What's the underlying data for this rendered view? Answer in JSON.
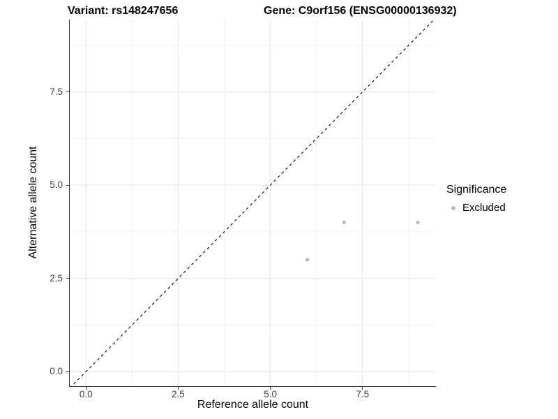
{
  "page": {
    "background": "#ffffff"
  },
  "colors": {
    "grid_major": "#e5e5e5",
    "grid_minor": "#f0f0f0",
    "axis_line": "#333333",
    "tick_mark": "#333333",
    "tick_label": "#404040",
    "point": "#b9b9b9",
    "reference_line": "#1a1a1a",
    "text": "#000000"
  },
  "legend": {
    "title": "Significance",
    "items": [
      {
        "label": "Excluded",
        "color": "#b9b9b9",
        "marker": "circle-icon"
      }
    ]
  },
  "chart_data": {
    "type": "scatter",
    "titles": {
      "left": "Variant: rs148247656",
      "right": "Gene: C9orf156 (ENSG00000136932)"
    },
    "xlabel": "Reference allele count",
    "ylabel": "Alternative allele count",
    "xlim": [
      -0.44,
      9.49
    ],
    "ylim": [
      -0.39,
      9.44
    ],
    "x_ticks": [
      0,
      2.5,
      5,
      7.5
    ],
    "x_tick_labels": [
      "0.0",
      "2.5",
      "5.0",
      "7.5"
    ],
    "x_minor_ticks": [
      1.25,
      3.75,
      6.25,
      8.75
    ],
    "y_ticks": [
      0,
      2.5,
      5,
      7.5
    ],
    "y_tick_labels": [
      "0.0",
      "2.5",
      "5.0",
      "7.5"
    ],
    "y_minor_ticks": [
      1.25,
      3.75,
      6.25,
      8.75
    ],
    "grid": true,
    "legend_position": "right",
    "series": [
      {
        "name": "Excluded",
        "color": "#b9b9b9",
        "marker_radius": 2.6,
        "points": [
          {
            "x": 6,
            "y": 3
          },
          {
            "x": 7,
            "y": 4
          },
          {
            "x": 9,
            "y": 4
          }
        ]
      }
    ],
    "reference_line": {
      "type": "abline",
      "slope": 1,
      "intercept": 0,
      "style": "dashed",
      "color": "#1a1a1a"
    }
  }
}
